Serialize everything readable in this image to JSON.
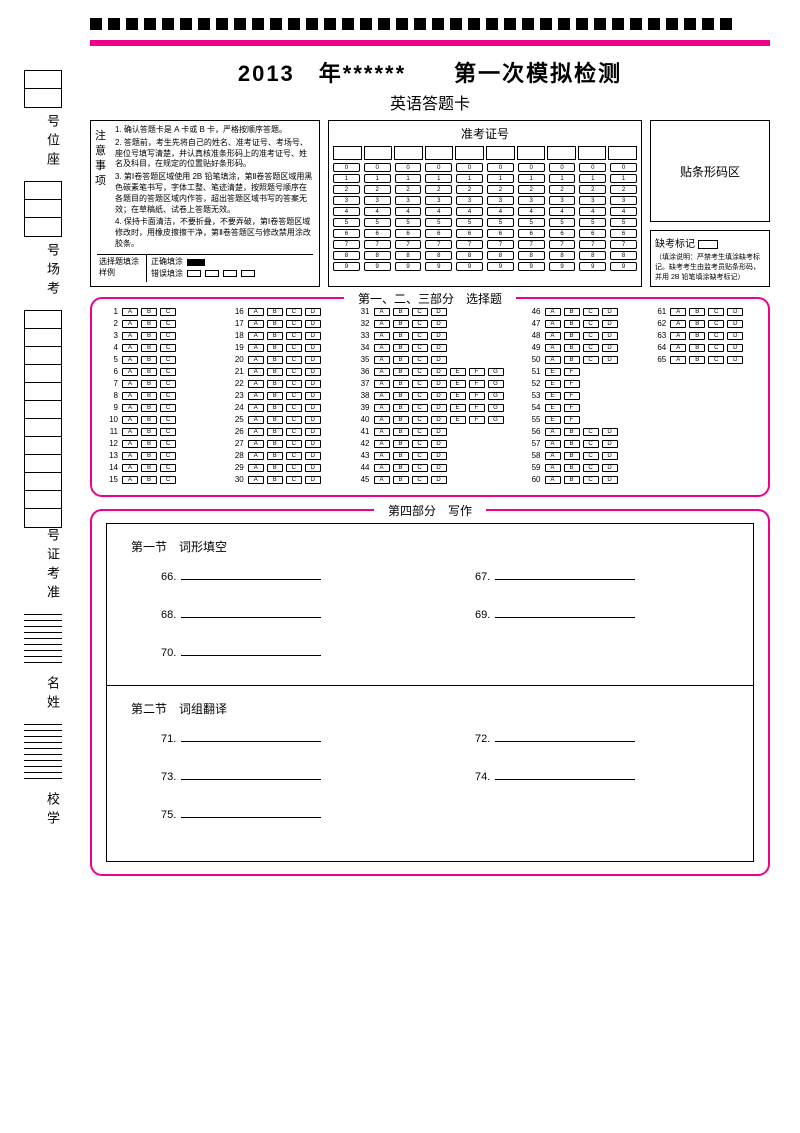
{
  "header": {
    "title_line1": "2013　年******　　第一次模拟检测",
    "title_line2": "英语答题卡"
  },
  "side": {
    "label1": "号位座",
    "label2": "号场考",
    "label3": "号证考准",
    "label4": "名姓",
    "label5": "校学"
  },
  "notice": {
    "heading": "注意事项",
    "lines": [
      "1. 确认答题卡是 A 卡或 B 卡，严格按顺序答题。",
      "2. 答题前，考生先将自己的姓名、准考证号、考场号、座位号填写清楚，并认真核准条形码上的准考证号、姓名及科目，在规定的位置贴好条形码。",
      "3. 第Ⅰ卷答题区域使用 2B 铅笔填涂，第Ⅱ卷答题区域用黑色碳素笔书写，字体工整、笔迹清楚，按照题号顺序在各题目的答题区域内作答，超出答题区域书写的答案无效；在草稿纸、试卷上答题无效。",
      "4. 保持卡面清洁，不要折叠，不要弄破，第Ⅰ卷答题区域修改时，用橡皮擦擦干净，第Ⅱ卷答题区与修改禁用涂改胶条。"
    ],
    "sample_label": "选择题填涂样例",
    "correct": "正确填涂",
    "wrong": "错误填涂"
  },
  "ticket": {
    "title": "准考证号"
  },
  "barcode": {
    "label": "贴条形码区"
  },
  "absent": {
    "title": "缺考标记",
    "note": "（填涂说明：严禁考生填涂缺考标记。缺考考生由监考员贴条形码，并用 2B 铅笔填涂缺考标记）"
  },
  "section1": {
    "label": "第一、二、三部分　选择题"
  },
  "section2": {
    "label": "第四部分　写作",
    "part1": "第一节　词形填空",
    "part2": "第二节　词组翻译",
    "blanks1": [
      "66.",
      "67.",
      "68.",
      "69.",
      "70."
    ],
    "blanks2": [
      "71.",
      "72.",
      "73.",
      "74.",
      "75."
    ]
  },
  "mc_config": {
    "col1_start": 1,
    "col1_end": 15,
    "col1_opts": 3,
    "col2_start": 16,
    "col2_end": 30,
    "col2_opts": 4,
    "col3_start": 31,
    "col3_end": 45,
    "col3_opts": 4,
    "col4_start": 46,
    "col4_end": 60,
    "col4_opts": 4,
    "col5_start": 61,
    "col5_end": 65,
    "col5_opts": 4,
    "col3_alt": {
      "start": 36,
      "end": 40,
      "opts": [
        "A",
        "B",
        "C",
        "D",
        "E",
        "F",
        "G"
      ]
    },
    "col4_alt": {
      "start": 51,
      "end": 55,
      "opts": [
        "E",
        "F"
      ]
    }
  },
  "colors": {
    "pink": "#ec008c"
  }
}
